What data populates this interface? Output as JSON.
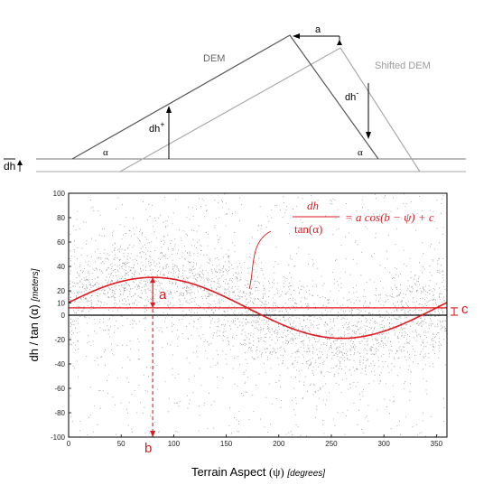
{
  "diagram": {
    "dem_label": "DEM",
    "shifted_dem_label": "Shifted DEM",
    "shift_label": "a",
    "dh_plus_label": "dh",
    "dh_plus_sup": "+",
    "dh_minus_label": "dh",
    "dh_minus_sup": "-",
    "alpha_left": "α",
    "alpha_right": "α",
    "mean_dh_label": "dh",
    "colors": {
      "dem": "#555555",
      "shifted_dem": "#aaaaaa"
    }
  },
  "chart_data": {
    "type": "scatter",
    "xlabel_main": "Terrain Aspect",
    "xlabel_symbol": "(ψ)",
    "xlabel_unit": "[degrees]",
    "ylabel_main": "dh / tan (α)",
    "ylabel_unit": "[meters]",
    "xlim": [
      0,
      360
    ],
    "ylim": [
      -100,
      100
    ],
    "xticks": [
      0,
      50,
      100,
      150,
      200,
      250,
      300,
      350
    ],
    "yticks": [
      100,
      80,
      60,
      40,
      20,
      10,
      0,
      -20,
      -40,
      -60,
      -80,
      -100
    ],
    "fit": {
      "a": 25,
      "b": 80,
      "c": 6
    },
    "scatter_spread": 20,
    "equation": {
      "numerator": "dh",
      "denominator": "tan(α)",
      "rhs": "= a cos(b − ψ) + c"
    },
    "annotations": {
      "a": "a",
      "b": "b",
      "c": "c"
    },
    "colors": {
      "fit": "#e0191f",
      "points": "#9a9a9a",
      "zero_line": "#000000"
    }
  }
}
